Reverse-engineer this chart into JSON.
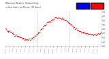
{
  "bg_color": "#ffffff",
  "plot_bg_color": "#ffffff",
  "dot_color": "#ff0000",
  "vline_color": "#aaaaaa",
  "vline_x": [
    480,
    960
  ],
  "ylim": [
    10,
    90
  ],
  "yticks": [
    10,
    20,
    30,
    40,
    50,
    60,
    70,
    80,
    90
  ],
  "n_points": 1440,
  "legend_blue_color": "#0000ff",
  "legend_red_color": "#ff0000",
  "spine_color": "#cccccc",
  "tick_color": "#555555",
  "title_color": "#333333",
  "title_text": "Milwaukee Weather  Outdoor Temp",
  "subtitle_text": "vs Heat Index  per Minute  (24 Hours)",
  "x_tick_labels": [
    "12:00a",
    "1:00a",
    "2:00a",
    "3:00a",
    "4:00a",
    "5:00a",
    "6:00a",
    "7:00a",
    "8:00a",
    "9:00a",
    "10:00a",
    "11:00a",
    "12:00p",
    "1:00p",
    "2:00p",
    "3:00p",
    "4:00p",
    "5:00p",
    "6:00p",
    "7:00p",
    "8:00p",
    "9:00p",
    "10:00p",
    "11:00p"
  ],
  "temp_points_x": [
    0,
    30,
    60,
    90,
    120,
    150,
    180,
    210,
    240,
    270,
    300,
    330,
    360,
    390,
    420,
    450,
    480,
    510,
    540,
    570,
    600,
    630,
    660,
    690,
    720,
    750,
    780,
    810,
    840,
    870,
    900,
    930,
    960,
    990,
    1020,
    1050,
    1080,
    1110,
    1140,
    1170,
    1200,
    1230,
    1260,
    1290,
    1320,
    1350,
    1380,
    1410,
    1439
  ],
  "temp_points_y": [
    50,
    47,
    44,
    41,
    38,
    35,
    33,
    31,
    29,
    27,
    26,
    25,
    26,
    28,
    31,
    35,
    40,
    45,
    50,
    56,
    61,
    65,
    68,
    71,
    74,
    76,
    77,
    76,
    75,
    73,
    70,
    67,
    63,
    59,
    55,
    51,
    48,
    45,
    43,
    41,
    40,
    39,
    38,
    37,
    37,
    37,
    38,
    39,
    40
  ]
}
